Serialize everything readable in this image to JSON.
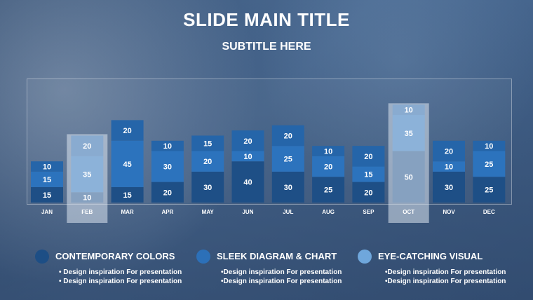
{
  "slide": {
    "title": "SLIDE MAIN TITLE",
    "subtitle": "SUBTITLE HERE"
  },
  "colors": {
    "series_bottom": "#1e4f86",
    "series_middle": "#2c73bd",
    "series_top": "#2565a9",
    "highlight_overlay": "rgba(220,230,240,0.55)",
    "legend_dot_1": "#1d4e85",
    "legend_dot_2": "#2c70b8",
    "legend_dot_3": "#6fa7dc"
  },
  "chart_data": {
    "type": "bar",
    "stacked": true,
    "categories": [
      "JAN",
      "FEB",
      "MAR",
      "APR",
      "MAY",
      "JUN",
      "JUL",
      "AUG",
      "SEP",
      "OCT",
      "NOV",
      "DEC"
    ],
    "series": [
      {
        "values": [
          15,
          10,
          15,
          20,
          30,
          40,
          30,
          25,
          20,
          50,
          30,
          25
        ]
      },
      {
        "values": [
          15,
          35,
          45,
          30,
          20,
          10,
          25,
          20,
          15,
          35,
          10,
          25
        ]
      },
      {
        "values": [
          10,
          20,
          20,
          10,
          15,
          20,
          20,
          10,
          20,
          10,
          20,
          10
        ]
      }
    ],
    "highlighted_categories": [
      "FEB",
      "OCT"
    ],
    "ylim": [
      0,
      100
    ],
    "grid": false,
    "xlabel": "",
    "ylabel": ""
  },
  "legend": [
    {
      "heading": "CONTEMPORARY COLORS",
      "bullets": [
        "• Design inspiration For presentation",
        "• Design inspiration For presentation"
      ]
    },
    {
      "heading": "SLEEK DIAGRAM & CHART",
      "bullets": [
        "•Design inspiration For presentation",
        "•Design inspiration For presentation"
      ]
    },
    {
      "heading": "EYE-CATCHING VISUAL",
      "bullets": [
        "•Design inspiration For presentation",
        "•Design inspiration For presentation"
      ]
    }
  ]
}
